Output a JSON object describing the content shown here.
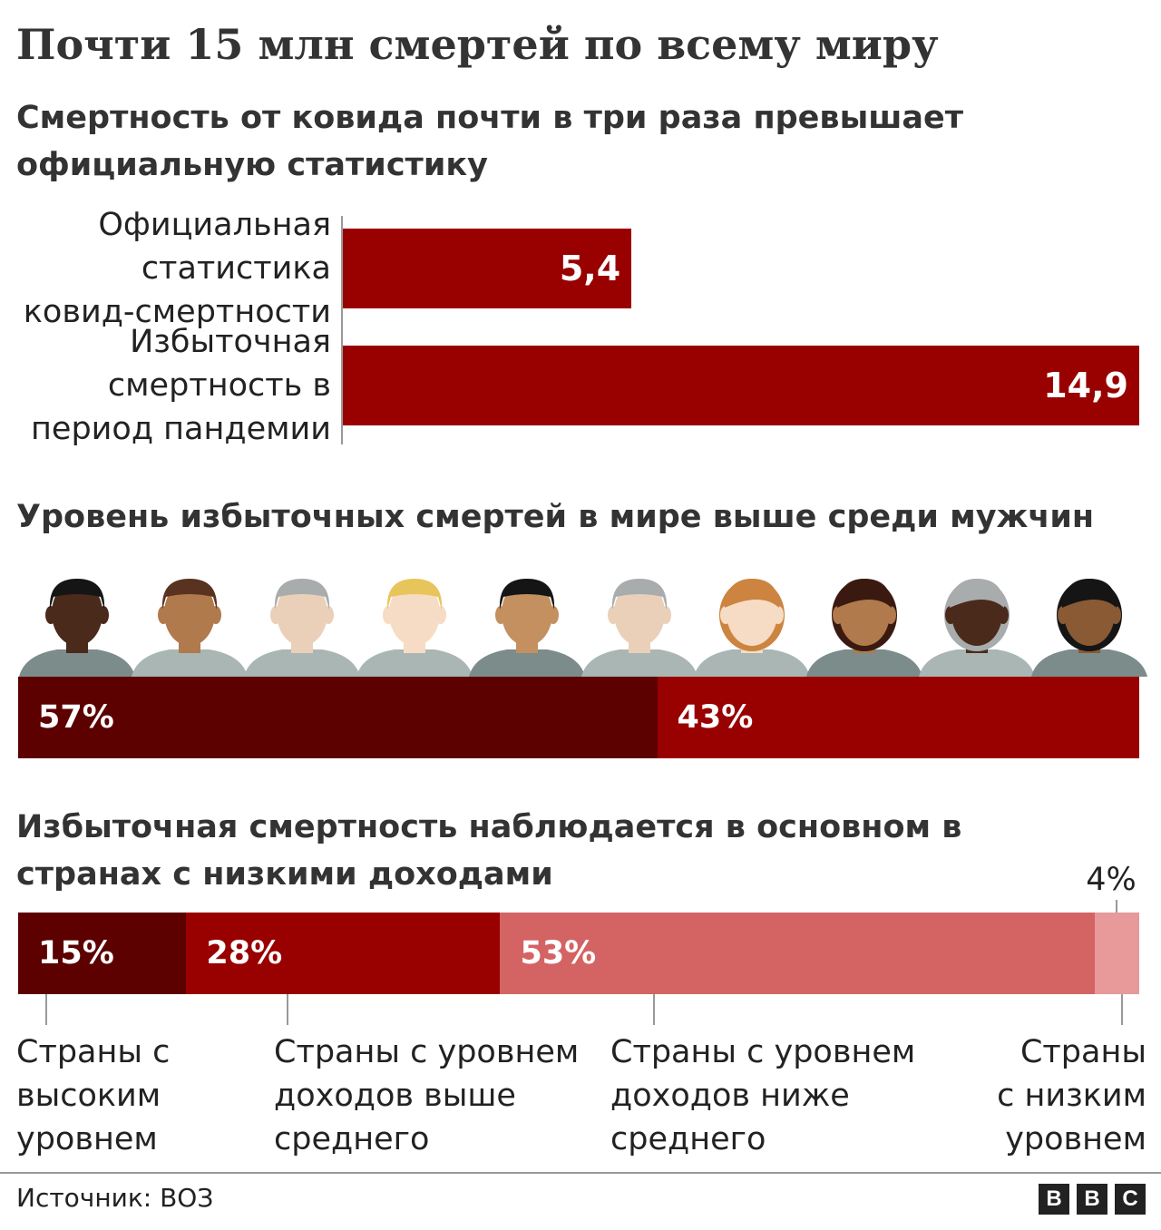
{
  "title": "Почти 15 млн смертей по всему миру",
  "chart_data": [
    {
      "type": "bar",
      "orientation": "horizontal",
      "title": "Смертность от ковида почти в три раза превышает официальную статистику",
      "categories": [
        "Официальная статистика ковид-смертности",
        "Избыточная смертность в период пандемии"
      ],
      "category_lines": [
        [
          "Официальная",
          "статистика",
          "ковид-смертности"
        ],
        [
          "Избыточная",
          "смертность в",
          "период пандемии"
        ]
      ],
      "values": [
        5.4,
        14.9
      ],
      "value_labels": [
        "5,4",
        "14,9"
      ],
      "xlim": [
        0,
        14.9
      ],
      "color": "#990000"
    },
    {
      "type": "bar",
      "stacked": true,
      "title": "Уровень избыточных смертей в мире выше среди мужчин",
      "segments": [
        {
          "value": 57,
          "label": "57%",
          "color": "#5c0000"
        },
        {
          "value": 43,
          "label": "43%",
          "color": "#990000"
        }
      ]
    },
    {
      "type": "bar",
      "stacked": true,
      "title": "Избыточная смертность наблюдается в основном в странах с низкими доходами",
      "segments": [
        {
          "value": 15,
          "label": "15%",
          "color": "#5c0000",
          "category_lines": [
            "Страны с",
            "высоким",
            "уровнем"
          ]
        },
        {
          "value": 28,
          "label": "28%",
          "color": "#990000",
          "category_lines": [
            "Страны с уровнем",
            "доходов выше",
            "среднего"
          ]
        },
        {
          "value": 53,
          "label": "53%",
          "color": "#d46363",
          "category_lines": [
            "Страны с уровнем",
            "доходов ниже",
            "среднего"
          ]
        },
        {
          "value": 4,
          "label": "4%",
          "color": "#e8999a",
          "category_lines": [
            "Страны",
            "с низким",
            "уровнем"
          ]
        }
      ]
    }
  ],
  "footer": {
    "source": "Источник: ВОЗ",
    "logo_letters": [
      "B",
      "B",
      "C"
    ]
  },
  "icons": [
    "male-face-icon",
    "female-face-icon"
  ]
}
